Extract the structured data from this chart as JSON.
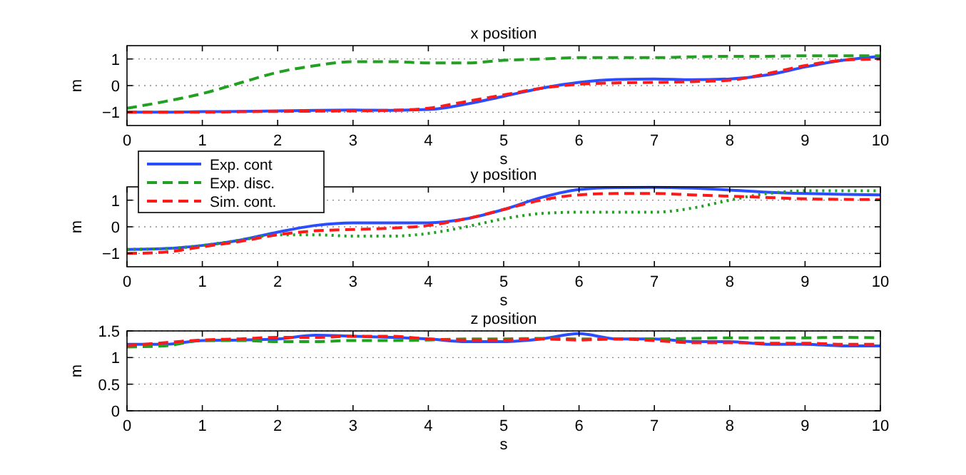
{
  "chart_data": [
    {
      "type": "line",
      "title": "x position",
      "xlabel": "s",
      "ylabel": "m",
      "xlim": [
        0,
        10
      ],
      "xticks": [
        0,
        1,
        2,
        3,
        4,
        5,
        6,
        7,
        8,
        9,
        10
      ],
      "ylim": [
        -1.5,
        1.5
      ],
      "yticks": [
        -1,
        0,
        1
      ],
      "grid": "y",
      "legend": "bottom left",
      "x": [
        0,
        0.5,
        1,
        1.5,
        2,
        2.5,
        3,
        3.5,
        4,
        4.5,
        5,
        5.5,
        6,
        6.5,
        7,
        7.5,
        8,
        8.5,
        9,
        9.5,
        10
      ],
      "series": [
        {
          "name": "Exp. cont",
          "color": "#2a4dff",
          "line_style": "solid",
          "values": [
            -1,
            -1,
            -0.98,
            -0.97,
            -0.95,
            -0.93,
            -0.92,
            -0.93,
            -0.9,
            -0.7,
            -0.4,
            -0.1,
            0.12,
            0.23,
            0.25,
            0.22,
            0.25,
            0.4,
            0.7,
            0.95,
            1.1
          ]
        },
        {
          "name": "Exp. disc.",
          "color": "#22a022",
          "line_style": "dashed",
          "values": [
            -0.85,
            -0.6,
            -0.3,
            0.1,
            0.5,
            0.75,
            0.9,
            0.9,
            0.85,
            0.85,
            0.95,
            1.0,
            1.05,
            1.05,
            1.05,
            1.08,
            1.1,
            1.1,
            1.12,
            1.12,
            1.12
          ]
        },
        {
          "name": "Sim. cont.",
          "color": "#ff1a1a",
          "line_style": "dashed",
          "values": [
            -1,
            -1,
            -1,
            -0.98,
            -0.97,
            -0.96,
            -0.95,
            -0.93,
            -0.85,
            -0.6,
            -0.35,
            -0.1,
            0.05,
            0.1,
            0.12,
            0.15,
            0.2,
            0.45,
            0.75,
            0.95,
            1.0
          ]
        }
      ]
    },
    {
      "type": "line",
      "title": "y position",
      "xlabel": "s",
      "ylabel": "m",
      "xlim": [
        0,
        10
      ],
      "xticks": [
        0,
        1,
        2,
        3,
        4,
        5,
        6,
        7,
        8,
        9,
        10
      ],
      "ylim": [
        -1.5,
        1.5
      ],
      "yticks": [
        -1,
        0,
        1
      ],
      "grid": "y",
      "x": [
        0,
        0.5,
        1,
        1.5,
        2,
        2.5,
        3,
        3.5,
        4,
        4.5,
        5,
        5.5,
        6,
        6.5,
        7,
        7.5,
        8,
        8.5,
        9,
        9.5,
        10
      ],
      "series": [
        {
          "color": "#2a4dff",
          "line_style": "solid",
          "values": [
            -0.85,
            -0.82,
            -0.7,
            -0.5,
            -0.2,
            0.05,
            0.15,
            0.15,
            0.15,
            0.3,
            0.65,
            1.1,
            1.4,
            1.47,
            1.48,
            1.45,
            1.38,
            1.3,
            1.25,
            1.22,
            1.2
          ]
        },
        {
          "color": "#22a022",
          "line_style": "dotted",
          "values": [
            -0.85,
            -0.82,
            -0.7,
            -0.5,
            -0.3,
            -0.3,
            -0.35,
            -0.35,
            -0.25,
            0.0,
            0.3,
            0.5,
            0.55,
            0.55,
            0.55,
            0.7,
            1.0,
            1.25,
            1.35,
            1.35,
            1.35
          ]
        },
        {
          "color": "#ff1a1a",
          "line_style": "dashed",
          "values": [
            -1.0,
            -0.95,
            -0.75,
            -0.55,
            -0.3,
            -0.15,
            -0.1,
            -0.05,
            0.05,
            0.3,
            0.65,
            1.0,
            1.2,
            1.25,
            1.25,
            1.2,
            1.15,
            1.1,
            1.05,
            1.03,
            1.02
          ]
        }
      ]
    },
    {
      "type": "line",
      "title": "z position",
      "xlabel": "s",
      "ylabel": "m",
      "xlim": [
        0,
        10
      ],
      "xticks": [
        0,
        1,
        2,
        3,
        4,
        5,
        6,
        7,
        8,
        9,
        10
      ],
      "ylim": [
        0,
        1.5
      ],
      "yticks": [
        0,
        0.5,
        1,
        1.5
      ],
      "grid": "y",
      "x": [
        0,
        0.5,
        1,
        1.5,
        2,
        2.5,
        3,
        3.5,
        4,
        4.5,
        5,
        5.5,
        6,
        6.5,
        7,
        7.5,
        8,
        8.5,
        9,
        9.5,
        10
      ],
      "series": [
        {
          "color": "#2a4dff",
          "line_style": "solid",
          "values": [
            1.25,
            1.25,
            1.32,
            1.33,
            1.35,
            1.42,
            1.4,
            1.38,
            1.35,
            1.3,
            1.3,
            1.35,
            1.45,
            1.35,
            1.35,
            1.3,
            1.3,
            1.25,
            1.25,
            1.22,
            1.22
          ]
        },
        {
          "color": "#22a022",
          "line_style": "dashed",
          "values": [
            1.2,
            1.22,
            1.32,
            1.32,
            1.3,
            1.3,
            1.32,
            1.32,
            1.33,
            1.35,
            1.35,
            1.36,
            1.35,
            1.35,
            1.35,
            1.36,
            1.37,
            1.37,
            1.37,
            1.38,
            1.37
          ]
        },
        {
          "color": "#ff1a1a",
          "line_style": "dashed",
          "values": [
            1.22,
            1.28,
            1.33,
            1.35,
            1.38,
            1.38,
            1.4,
            1.4,
            1.35,
            1.33,
            1.33,
            1.35,
            1.33,
            1.35,
            1.32,
            1.28,
            1.28,
            1.27,
            1.27,
            1.25,
            1.25
          ]
        }
      ]
    }
  ]
}
